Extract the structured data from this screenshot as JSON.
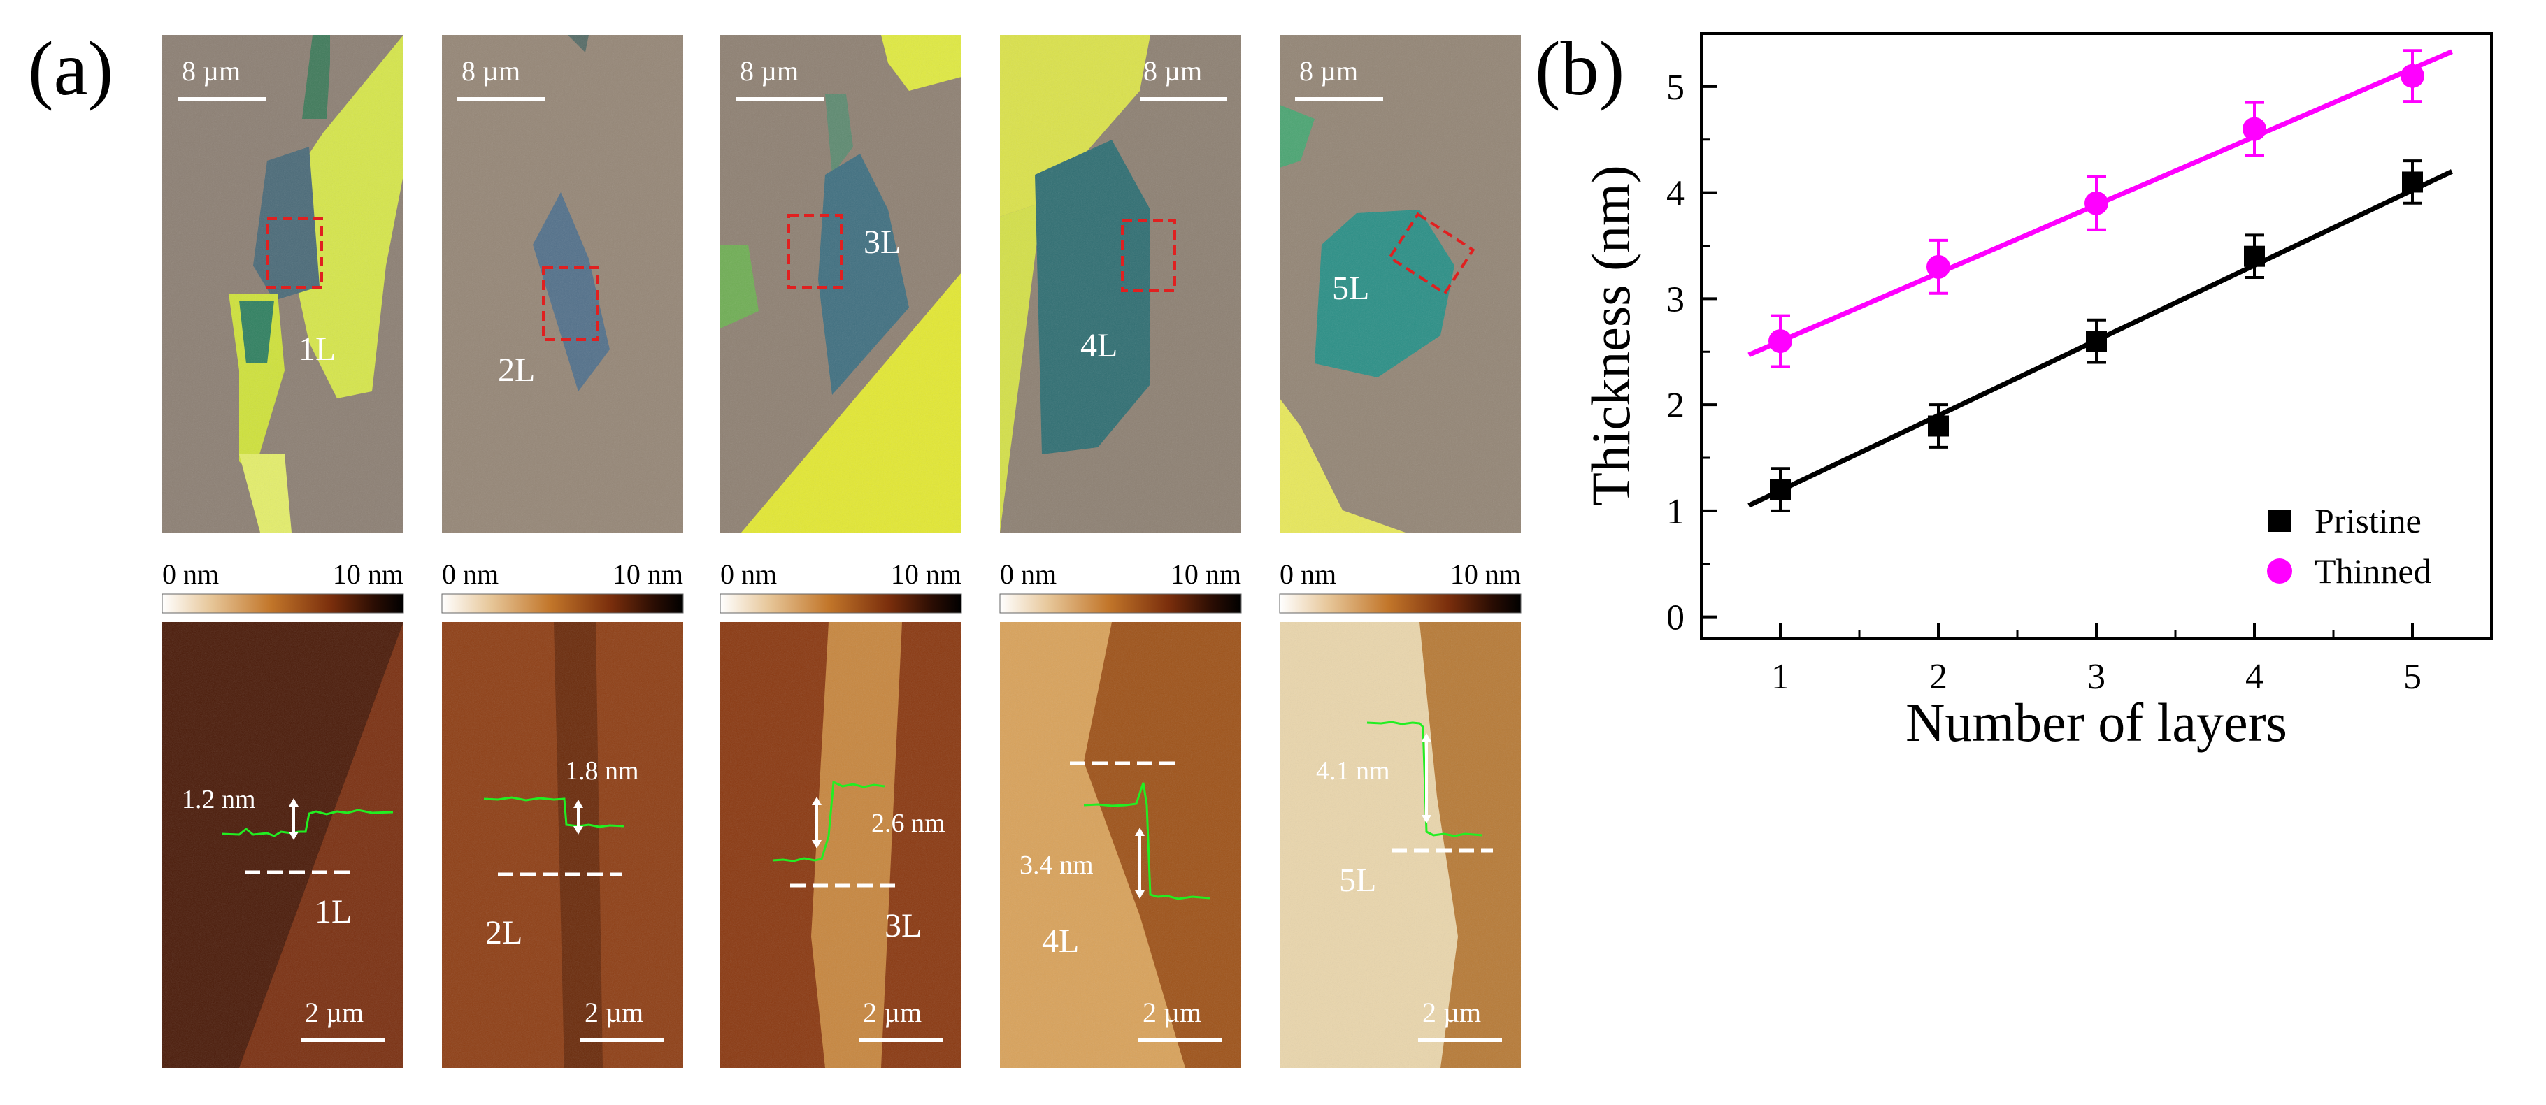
{
  "figure": {
    "panel_a_label": "(a)",
    "panel_b_label": "(b)",
    "optical": {
      "scale_bar_label": "8 µm",
      "flakes": [
        {
          "layer_label": "1L",
          "substrate": "#8c7f73",
          "flake": "#4a6a78",
          "bulk": "#d6e64a"
        },
        {
          "layer_label": "2L",
          "substrate": "#958676",
          "flake": "#52708a",
          "bulk": "#c8dc48"
        },
        {
          "layer_label": "3L",
          "substrate": "#8e8072",
          "flake": "#3f6f80",
          "bulk": "#e3e832"
        },
        {
          "layer_label": "4L",
          "substrate": "#8d8072",
          "flake": "#2f6e72",
          "bulk": "#dbe24a"
        },
        {
          "layer_label": "5L",
          "substrate": "#938575",
          "flake": "#2a8f86",
          "bulk": "#e8e85a"
        }
      ]
    },
    "colorbar": {
      "min_label": "0 nm",
      "max_label": "10 nm"
    },
    "afm": {
      "scale_bar_label": "2 µm",
      "images": [
        {
          "layer_label": "1L",
          "step_label": "1.2 nm",
          "dark": "#4a1a08",
          "light": "#7a2f10"
        },
        {
          "layer_label": "2L",
          "step_label": "1.8 nm",
          "dark": "#6a2a0a",
          "light": "#8e3e14"
        },
        {
          "layer_label": "3L",
          "step_label": "2.6 nm",
          "dark": "#8a3810",
          "light": "#c7863e"
        },
        {
          "layer_label": "4L",
          "step_label": "3.4 nm",
          "dark": "#9e5218",
          "light": "#d9a25a"
        },
        {
          "layer_label": "5L",
          "step_label": "4.1 nm",
          "dark": "#b77a36",
          "light": "#ead6ac"
        }
      ]
    }
  },
  "chart_data": {
    "type": "scatter",
    "xlabel": "Number of layers",
    "ylabel": "Thickness (nm)",
    "xlim": [
      0.5,
      5.5
    ],
    "ylim": [
      -0.2,
      5.5
    ],
    "x_ticks": [
      1,
      2,
      3,
      4,
      5
    ],
    "y_ticks": [
      0,
      1,
      2,
      3,
      4,
      5
    ],
    "legend_position": "bottom-right",
    "series": [
      {
        "name": "Pristine",
        "color": "#000000",
        "marker": "square",
        "x": [
          1,
          2,
          3,
          4,
          5
        ],
        "values": [
          1.2,
          1.8,
          2.6,
          3.4,
          4.1
        ],
        "errors": [
          0.2,
          0.2,
          0.2,
          0.2,
          0.2
        ],
        "fit_line": {
          "x": [
            0.8,
            5.25
          ],
          "y": [
            1.05,
            4.2
          ]
        }
      },
      {
        "name": "Thinned",
        "color": "#ff00ff",
        "marker": "circle",
        "x": [
          1,
          2,
          3,
          4,
          5
        ],
        "values": [
          2.6,
          3.3,
          3.9,
          4.6,
          5.1
        ],
        "errors": [
          0.24,
          0.25,
          0.25,
          0.25,
          0.24
        ],
        "fit_line": {
          "x": [
            0.8,
            5.25
          ],
          "y": [
            2.47,
            5.33
          ]
        }
      }
    ]
  }
}
